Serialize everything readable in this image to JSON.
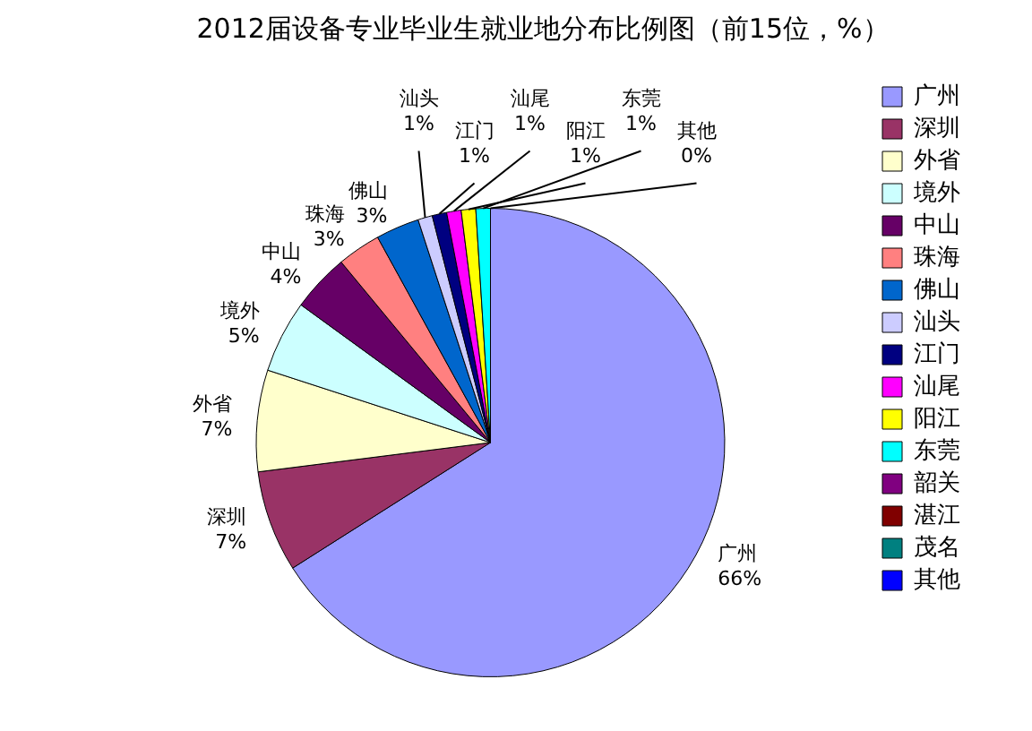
{
  "chart_data": {
    "type": "pie",
    "title": "2012届设备专业毕业生就业地分布比例图（前15位，%）",
    "categories": [
      "广州",
      "深圳",
      "外省",
      "境外",
      "中山",
      "珠海",
      "佛山",
      "汕头",
      "江门",
      "汕尾",
      "阳江",
      "东莞",
      "韶关",
      "湛江",
      "茂名",
      "其他"
    ],
    "values": [
      66,
      7,
      7,
      5,
      4,
      3,
      3,
      1,
      1,
      1,
      1,
      1,
      0,
      0,
      0,
      0
    ],
    "colors": [
      "#9999ff",
      "#993366",
      "#ffffcc",
      "#ccffff",
      "#660066",
      "#ff8080",
      "#0066cc",
      "#ccccff",
      "#000080",
      "#ff00ff",
      "#ffff00",
      "#00ffff",
      "#800080",
      "#800000",
      "#008080",
      "#0000ff"
    ],
    "value_labels": [
      "66%",
      "7%",
      "7%",
      "5%",
      "4%",
      "3%",
      "3%",
      "1%",
      "1%",
      "1%",
      "1%",
      "1%",
      null,
      null,
      null,
      "0%"
    ],
    "legend": "right"
  }
}
